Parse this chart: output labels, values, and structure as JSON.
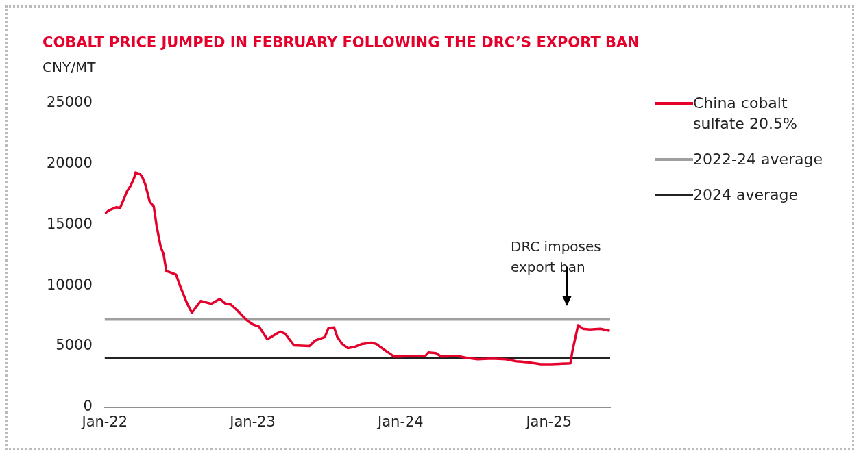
{
  "chart_data": {
    "type": "line",
    "title": "COBALT PRICE JUMPED IN FEBRUARY FOLLOWING THE DRC’S EXPORT BAN",
    "ylabel": "CNY/MT",
    "x": [
      "2022-01-01",
      "2022-01-13",
      "2022-01-30",
      "2022-02-08",
      "2022-02-25",
      "2022-03-06",
      "2022-03-15",
      "2022-03-18",
      "2022-03-29",
      "2022-04-04",
      "2022-04-11",
      "2022-04-22",
      "2022-05-02",
      "2022-05-09",
      "2022-05-19",
      "2022-05-26",
      "2022-06-02",
      "2022-06-13",
      "2022-06-26",
      "2022-07-05",
      "2022-07-14",
      "2022-07-22",
      "2022-08-04",
      "2022-08-14",
      "2022-08-26",
      "2022-09-07",
      "2022-09-21",
      "2022-10-12",
      "2022-10-26",
      "2022-11-08",
      "2022-11-21",
      "2022-12-08",
      "2022-12-20",
      "2023-01-03",
      "2023-01-17",
      "2023-02-06",
      "2023-03-10",
      "2023-03-22",
      "2023-04-13",
      "2023-05-21",
      "2023-06-04",
      "2023-06-28",
      "2023-07-07",
      "2023-07-21",
      "2023-07-29",
      "2023-08-10",
      "2023-08-24",
      "2023-09-11",
      "2023-09-28",
      "2023-10-20",
      "2023-11-02",
      "2023-11-19",
      "2023-12-06",
      "2023-12-15",
      "2024-01-01",
      "2024-01-18",
      "2024-03-02",
      "2024-03-10",
      "2024-03-28",
      "2024-04-10",
      "2024-05-18",
      "2024-06-13",
      "2024-07-09",
      "2024-08-13",
      "2024-09-17",
      "2024-10-12",
      "2024-11-07",
      "2024-12-12",
      "2025-01-07",
      "2025-02-23",
      "2025-02-28",
      "2025-03-14",
      "2025-03-26",
      "2025-04-12",
      "2025-05-08",
      "2025-05-31"
    ],
    "series": [
      {
        "name": "China cobalt sulfate 20.5%",
        "color": "#e4002b",
        "values": [
          15930,
          16210,
          16440,
          16380,
          17750,
          18210,
          18900,
          19290,
          19180,
          18900,
          18320,
          16900,
          16500,
          14900,
          13190,
          12610,
          11190,
          11070,
          10900,
          10050,
          9300,
          8620,
          7760,
          8220,
          8730,
          8620,
          8500,
          8900,
          8500,
          8450,
          8050,
          7480,
          7080,
          6790,
          6620,
          5590,
          6220,
          6050,
          5080,
          5020,
          5480,
          5760,
          6510,
          6560,
          5760,
          5200,
          4850,
          4970,
          5200,
          5310,
          5200,
          4790,
          4400,
          4170,
          4170,
          4220,
          4220,
          4510,
          4450,
          4170,
          4220,
          4050,
          3940,
          4000,
          3940,
          3770,
          3710,
          3540,
          3540,
          3600,
          4620,
          6740,
          6450,
          6390,
          6450,
          6280
        ]
      }
    ],
    "ref_lines": [
      {
        "axis": "y",
        "value": 7200,
        "label": "2022-24 average",
        "color": "#a0a0a0"
      },
      {
        "axis": "y",
        "value": 4050,
        "label": "2024 average",
        "color": "#222222"
      }
    ],
    "annotations": [
      "DRC imposes export ban"
    ],
    "xlim": [
      "2022-01-01",
      "2025-06-01"
    ],
    "xticks": [
      {
        "value": "2022-01-01",
        "label": "Jan-22"
      },
      {
        "value": "2023-01-01",
        "label": "Jan-23"
      },
      {
        "value": "2024-01-01",
        "label": "Jan-24"
      },
      {
        "value": "2025-01-01",
        "label": "Jan-25"
      }
    ],
    "ylim": [
      0,
      25000
    ],
    "yticks": [
      0,
      5000,
      10000,
      15000,
      20000,
      25000
    ],
    "grid": false,
    "legend": "right",
    "marker": "none",
    "line_style": "solid"
  }
}
